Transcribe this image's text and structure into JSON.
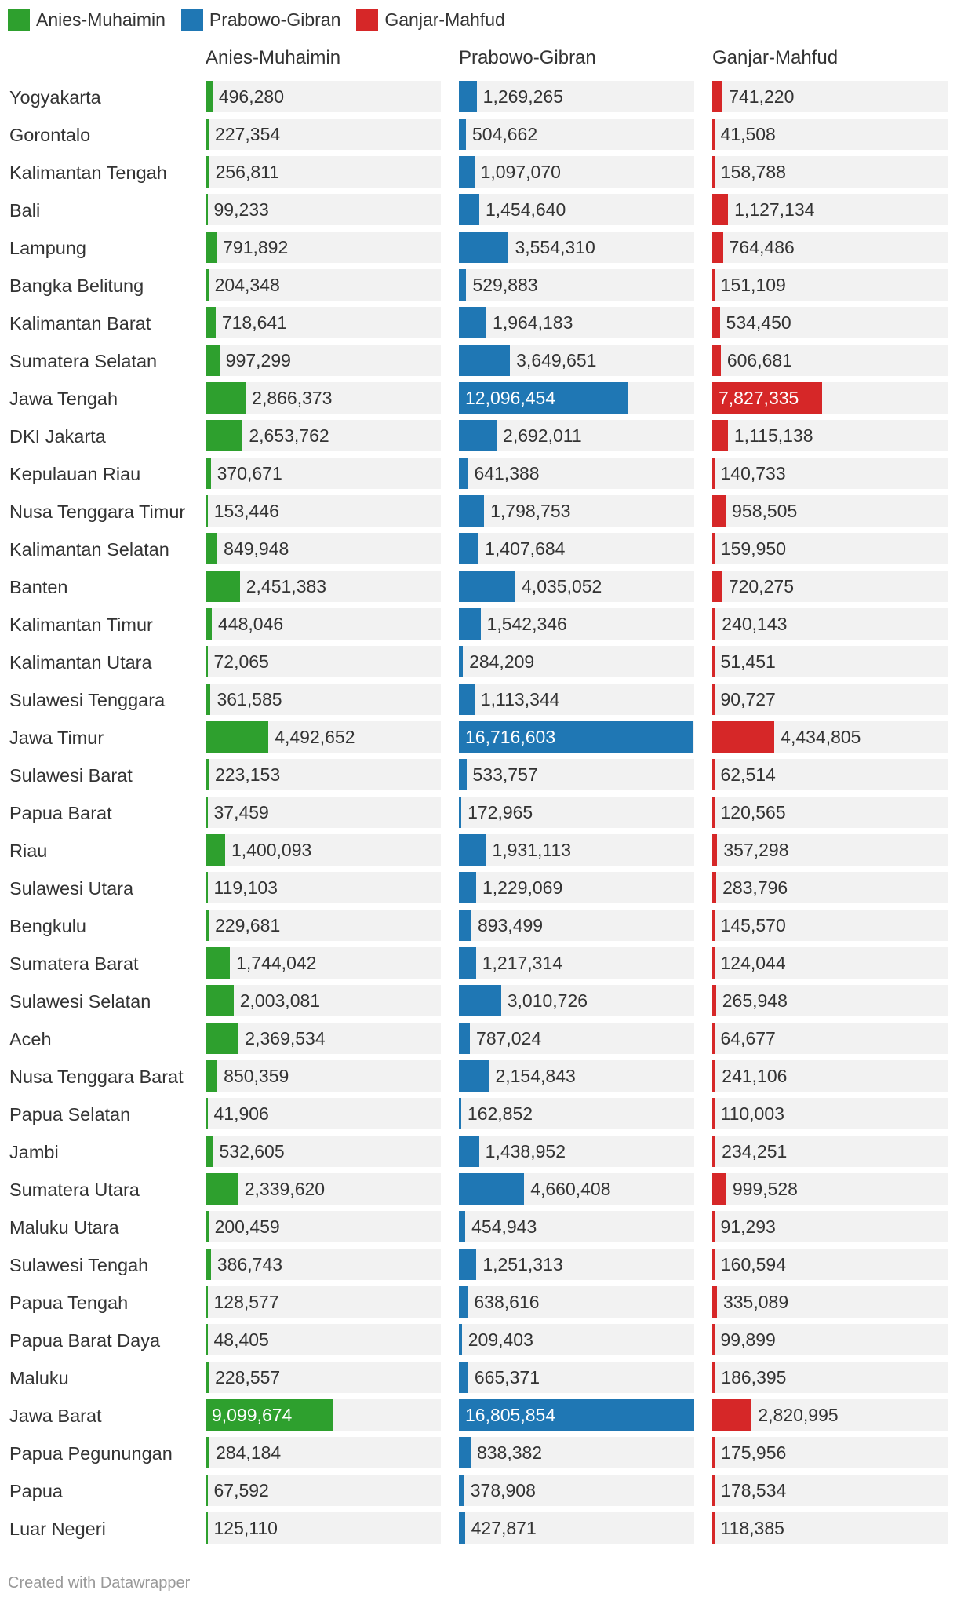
{
  "legend": [
    {
      "name": "Anies-Muhaimin",
      "color": "#2ea02e"
    },
    {
      "name": "Prabowo-Gibran",
      "color": "#1f77b4"
    },
    {
      "name": "Ganjar-Mahfud",
      "color": "#d62728"
    }
  ],
  "footer": "Created with Datawrapper",
  "chart_data": {
    "type": "bar",
    "title": "",
    "xlabel": "",
    "ylabel": "",
    "xlim": [
      0,
      16805854
    ],
    "legend_position": "top-left",
    "grid": false,
    "categories": [
      "Yogyakarta",
      "Gorontalo",
      "Kalimantan Tengah",
      "Bali",
      "Lampung",
      "Bangka Belitung",
      "Kalimantan Barat",
      "Sumatera Selatan",
      "Jawa Tengah",
      "DKI Jakarta",
      "Kepulauan Riau",
      "Nusa Tenggara Timur",
      "Kalimantan Selatan",
      "Banten",
      "Kalimantan Timur",
      "Kalimantan Utara",
      "Sulawesi Tenggara",
      "Jawa Timur",
      "Sulawesi Barat",
      "Papua Barat",
      "Riau",
      "Sulawesi Utara",
      "Bengkulu",
      "Sumatera Barat",
      "Sulawesi Selatan",
      "Aceh",
      "Nusa Tenggara Barat",
      "Papua Selatan",
      "Jambi",
      "Sumatera Utara",
      "Maluku Utara",
      "Sulawesi Tengah",
      "Papua Tengah",
      "Papua Barat Daya",
      "Maluku",
      "Jawa Barat",
      "Papua Pegunungan",
      "Papua",
      "Luar Negeri"
    ],
    "series": [
      {
        "name": "Anies-Muhaimin",
        "color": "#2ea02e",
        "values": [
          496280,
          227354,
          256811,
          99233,
          791892,
          204348,
          718641,
          997299,
          2866373,
          2653762,
          370671,
          153446,
          849948,
          2451383,
          448046,
          72065,
          361585,
          4492652,
          223153,
          37459,
          1400093,
          119103,
          229681,
          1744042,
          2003081,
          2369534,
          850359,
          41906,
          532605,
          2339620,
          200459,
          386743,
          128577,
          48405,
          228557,
          9099674,
          284184,
          67592,
          125110
        ],
        "labels": [
          "496,280",
          "227,354",
          "256,811",
          "99,233",
          "791,892",
          "204,348",
          "718,641",
          "997,299",
          "2,866,373",
          "2,653,762",
          "370,671",
          "153,446",
          "849,948",
          "2,451,383",
          "448,046",
          "72,065",
          "361,585",
          "4,492,652",
          "223,153",
          "37,459",
          "1,400,093",
          "119,103",
          "229,681",
          "1,744,042",
          "2,003,081",
          "2,369,534",
          "850,359",
          "41,906",
          "532,605",
          "2,339,620",
          "200,459",
          "386,743",
          "128,577",
          "48,405",
          "228,557",
          "9,099,674",
          "284,184",
          "67,592",
          "125,110"
        ]
      },
      {
        "name": "Prabowo-Gibran",
        "color": "#1f77b4",
        "values": [
          1269265,
          504662,
          1097070,
          1454640,
          3554310,
          529883,
          1964183,
          3649651,
          12096454,
          2692011,
          641388,
          1798753,
          1407684,
          4035052,
          1542346,
          284209,
          1113344,
          16716603,
          533757,
          172965,
          1931113,
          1229069,
          893499,
          1217314,
          3010726,
          787024,
          2154843,
          162852,
          1438952,
          4660408,
          454943,
          1251313,
          638616,
          209403,
          665371,
          16805854,
          838382,
          378908,
          427871
        ],
        "labels": [
          "1,269,265",
          "504,662",
          "1,097,070",
          "1,454,640",
          "3,554,310",
          "529,883",
          "1,964,183",
          "3,649,651",
          "12,096,454",
          "2,692,011",
          "641,388",
          "1,798,753",
          "1,407,684",
          "4,035,052",
          "1,542,346",
          "284,209",
          "1,113,344",
          "16,716,603",
          "533,757",
          "172,965",
          "1,931,113",
          "1,229,069",
          "893,499",
          "1,217,314",
          "3,010,726",
          "787,024",
          "2,154,843",
          "162,852",
          "1,438,952",
          "4,660,408",
          "454,943",
          "1,251,313",
          "638,616",
          "209,403",
          "665,371",
          "16,805,854",
          "838,382",
          "378,908",
          "427,871"
        ]
      },
      {
        "name": "Ganjar-Mahfud",
        "color": "#d62728",
        "values": [
          741220,
          41508,
          158788,
          1127134,
          764486,
          151109,
          534450,
          606681,
          7827335,
          1115138,
          140733,
          958505,
          159950,
          720275,
          240143,
          51451,
          90727,
          4434805,
          62514,
          120565,
          357298,
          283796,
          145570,
          124044,
          265948,
          64677,
          241106,
          110003,
          234251,
          999528,
          91293,
          160594,
          335089,
          99899,
          186395,
          2820995,
          175956,
          178534,
          118385
        ],
        "labels": [
          "741,220",
          "41,508",
          "158,788",
          "1,127,134",
          "764,486",
          "151,109",
          "534,450",
          "606,681",
          "7,827,335",
          "1,115,138",
          "140,733",
          "958,505",
          "159,950",
          "720,275",
          "240,143",
          "51,451",
          "90,727",
          "4,434,805",
          "62,514",
          "120,565",
          "357,298",
          "283,796",
          "145,570",
          "124,044",
          "265,948",
          "64,677",
          "241,106",
          "110,003",
          "234,251",
          "999,528",
          "91,293",
          "160,594",
          "335,089",
          "99,899",
          "186,395",
          "2,820,995",
          "175,956",
          "178,534",
          "118,385"
        ]
      }
    ]
  }
}
